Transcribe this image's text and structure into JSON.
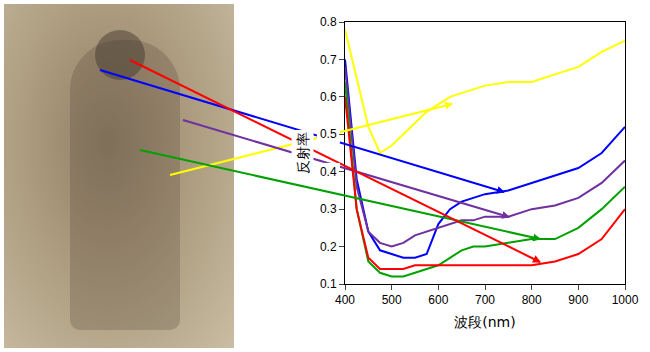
{
  "chart_data": {
    "type": "line",
    "x_label": "波段(nm)",
    "y_label": "反射率",
    "x": [
      400,
      425,
      450,
      475,
      500,
      525,
      550,
      575,
      600,
      625,
      650,
      675,
      700,
      750,
      800,
      850,
      900,
      950,
      1000
    ],
    "series": [
      {
        "color": "#ffff00",
        "values": [
          0.78,
          0.65,
          0.52,
          0.45,
          0.47,
          0.5,
          0.53,
          0.56,
          0.58,
          0.6,
          0.61,
          0.62,
          0.63,
          0.64,
          0.64,
          0.66,
          0.68,
          0.72,
          0.75
        ]
      },
      {
        "color": "#0000ff",
        "values": [
          0.7,
          0.38,
          0.24,
          0.19,
          0.18,
          0.17,
          0.17,
          0.18,
          0.26,
          0.3,
          0.32,
          0.33,
          0.34,
          0.35,
          0.37,
          0.39,
          0.41,
          0.45,
          0.52
        ]
      },
      {
        "color": "#7030a0",
        "values": [
          0.68,
          0.36,
          0.24,
          0.21,
          0.2,
          0.21,
          0.23,
          0.24,
          0.25,
          0.26,
          0.27,
          0.27,
          0.28,
          0.28,
          0.3,
          0.31,
          0.33,
          0.37,
          0.43
        ]
      },
      {
        "color": "#00a000",
        "values": [
          0.64,
          0.3,
          0.16,
          0.13,
          0.12,
          0.12,
          0.13,
          0.14,
          0.15,
          0.17,
          0.19,
          0.2,
          0.2,
          0.21,
          0.22,
          0.22,
          0.25,
          0.3,
          0.36
        ]
      },
      {
        "color": "#ff0000",
        "values": [
          0.6,
          0.3,
          0.17,
          0.14,
          0.14,
          0.14,
          0.15,
          0.15,
          0.15,
          0.15,
          0.15,
          0.15,
          0.15,
          0.15,
          0.15,
          0.16,
          0.18,
          0.22,
          0.3
        ]
      }
    ],
    "xlim": [
      400,
      1000
    ],
    "xticks": [
      400,
      500,
      600,
      700,
      800,
      900,
      1000
    ],
    "ylim": [
      0.1,
      0.8
    ],
    "yticks": [
      0.1,
      0.2,
      0.3,
      0.4,
      0.5,
      0.6,
      0.7,
      0.8
    ],
    "grid": false
  }
}
